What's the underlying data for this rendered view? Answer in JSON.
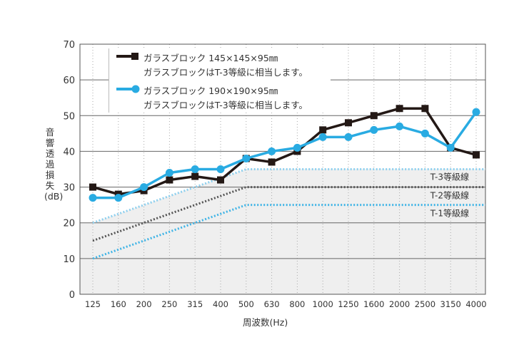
{
  "chart_data": {
    "type": "line",
    "categories": [
      "125",
      "160",
      "200",
      "250",
      "315",
      "400",
      "500",
      "630",
      "800",
      "1000",
      "1250",
      "1600",
      "2000",
      "2500",
      "3150",
      "4000"
    ],
    "xlabel": "周波数(Hz)",
    "ylabel": "音響透過損失(dB)",
    "ylim": [
      0,
      70
    ],
    "yticks": [
      0,
      10,
      20,
      30,
      40,
      50,
      60,
      70
    ],
    "grid": true,
    "legend_position": "top-left",
    "series": [
      {
        "name": "ガラスブロック 145×145×95㎜",
        "note": "ガラスブロックはT-3等級に相当します。",
        "color": "#231815",
        "marker": "square",
        "values": [
          30,
          28,
          29,
          32,
          33,
          32,
          38,
          37,
          40,
          46,
          48,
          50,
          52,
          52,
          41,
          39
        ]
      },
      {
        "name": "ガラスブロック 190×190×95㎜",
        "note": "ガラスブロックはT-3等級に相当します。",
        "color": "#29abe2",
        "marker": "circle",
        "values": [
          27,
          27,
          30,
          34,
          35,
          35,
          38,
          40,
          41,
          44,
          44,
          46,
          47,
          45,
          41,
          51
        ]
      }
    ],
    "reference_lines": [
      {
        "name": "T-3等級線",
        "color": "#8fd0ee",
        "values_at": {
          "125": 20,
          "500": 35,
          "4000": 35
        }
      },
      {
        "name": "T-2等級線",
        "color": "#555555",
        "values_at": {
          "125": 15,
          "500": 30,
          "4000": 30
        }
      },
      {
        "name": "T-1等級線",
        "color": "#3fb4e6",
        "values_at": {
          "125": 10,
          "500": 25,
          "4000": 25
        }
      }
    ]
  }
}
